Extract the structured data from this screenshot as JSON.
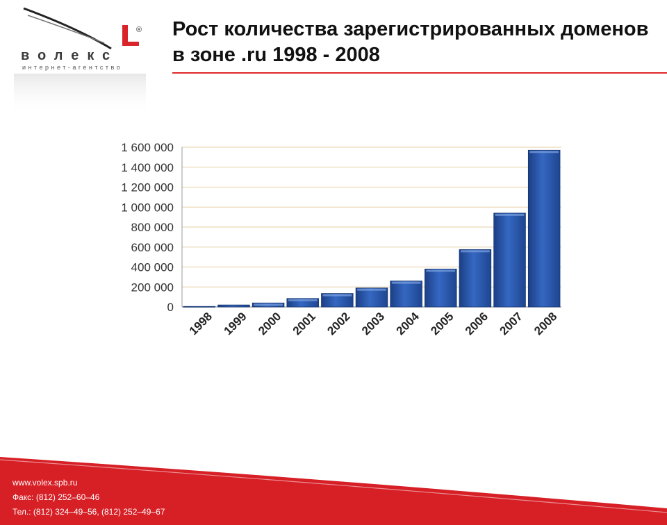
{
  "title": "Рост количества зарегистрированных доменов в зоне .ru 1998 - 2008",
  "logo": {
    "brand_text": "волекс",
    "tagline": "интернет-агентство",
    "reg_mark": "®"
  },
  "colors": {
    "accent": "#e0262a",
    "bar": "#2f5fb5",
    "bar_top": "#2a4f98",
    "grid": "#ead9b8"
  },
  "chart_data": {
    "type": "bar",
    "title": "",
    "xlabel": "",
    "ylabel": "",
    "categories": [
      "1998",
      "1999",
      "2000",
      "2001",
      "2002",
      "2003",
      "2004",
      "2005",
      "2006",
      "2007",
      "2008"
    ],
    "values": [
      5000,
      20000,
      40000,
      85000,
      135000,
      190000,
      260000,
      380000,
      575000,
      940000,
      1570000
    ],
    "ylim": [
      0,
      1600000
    ],
    "yticks": [
      {
        "value": 0,
        "label": "0"
      },
      {
        "value": 200000,
        "label": "200 000"
      },
      {
        "value": 400000,
        "label": "400 000"
      },
      {
        "value": 600000,
        "label": "600 000"
      },
      {
        "value": 800000,
        "label": "800 000"
      },
      {
        "value": 1000000,
        "label": "1 000 000"
      },
      {
        "value": 1200000,
        "label": "1 200 000"
      },
      {
        "value": 1400000,
        "label": "1 400 000"
      },
      {
        "value": 1600000,
        "label": "1 600 000"
      }
    ],
    "grid": true,
    "legend": "none"
  },
  "footer": {
    "website": "www.volex.spb.ru",
    "fax": "Факс: (812) 252–60–46",
    "phone": "Тел.: (812) 324–49–56, (812) 252–49–67"
  }
}
